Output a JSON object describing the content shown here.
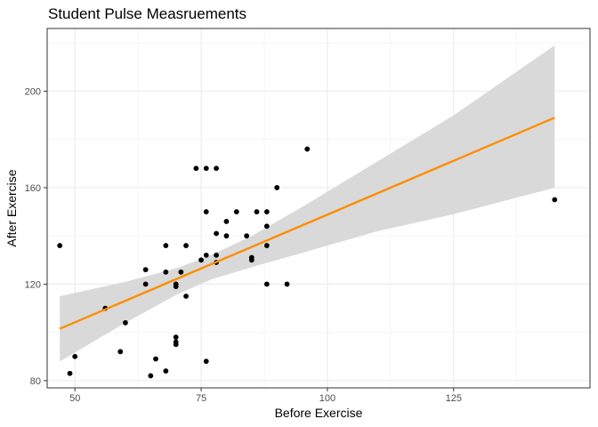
{
  "chart_data": {
    "type": "scatter",
    "title": "Student Pulse Measruements",
    "xlabel": "Before Exercise",
    "ylabel": "After Exercise",
    "xlim": [
      44.5,
      152
    ],
    "ylim": [
      77,
      226
    ],
    "x_ticks": [
      50,
      75,
      100,
      125
    ],
    "y_ticks": [
      80,
      120,
      160,
      200
    ],
    "x_minor": [
      62.5,
      87.5,
      112.5,
      137.5
    ],
    "y_minor": [
      100,
      140,
      180,
      220
    ],
    "grid": true,
    "theme": "bw",
    "point_color": "#000000",
    "points": [
      {
        "x": 47,
        "y": 136
      },
      {
        "x": 49,
        "y": 83
      },
      {
        "x": 50,
        "y": 90
      },
      {
        "x": 56,
        "y": 110
      },
      {
        "x": 59,
        "y": 92
      },
      {
        "x": 60,
        "y": 104
      },
      {
        "x": 64,
        "y": 126
      },
      {
        "x": 64,
        "y": 120
      },
      {
        "x": 65,
        "y": 82
      },
      {
        "x": 66,
        "y": 89
      },
      {
        "x": 68,
        "y": 136
      },
      {
        "x": 68,
        "y": 125
      },
      {
        "x": 68,
        "y": 84
      },
      {
        "x": 70,
        "y": 120
      },
      {
        "x": 70,
        "y": 119
      },
      {
        "x": 70,
        "y": 98
      },
      {
        "x": 70,
        "y": 96
      },
      {
        "x": 70,
        "y": 95
      },
      {
        "x": 71,
        "y": 125
      },
      {
        "x": 72,
        "y": 136
      },
      {
        "x": 72,
        "y": 115
      },
      {
        "x": 74,
        "y": 168
      },
      {
        "x": 75,
        "y": 130
      },
      {
        "x": 76,
        "y": 168
      },
      {
        "x": 76,
        "y": 150
      },
      {
        "x": 76,
        "y": 132
      },
      {
        "x": 76,
        "y": 88
      },
      {
        "x": 78,
        "y": 168
      },
      {
        "x": 78,
        "y": 141
      },
      {
        "x": 78,
        "y": 132
      },
      {
        "x": 78,
        "y": 129
      },
      {
        "x": 80,
        "y": 146
      },
      {
        "x": 80,
        "y": 140
      },
      {
        "x": 82,
        "y": 150
      },
      {
        "x": 84,
        "y": 140
      },
      {
        "x": 85,
        "y": 131
      },
      {
        "x": 85,
        "y": 130
      },
      {
        "x": 86,
        "y": 150
      },
      {
        "x": 88,
        "y": 150
      },
      {
        "x": 88,
        "y": 144
      },
      {
        "x": 88,
        "y": 136
      },
      {
        "x": 88,
        "y": 120
      },
      {
        "x": 90,
        "y": 160
      },
      {
        "x": 92,
        "y": 120
      },
      {
        "x": 96,
        "y": 176
      },
      {
        "x": 145,
        "y": 155
      }
    ],
    "fit": {
      "method": "lm",
      "color": "#FF8C00",
      "line": [
        {
          "x": 47,
          "y": 101.5
        },
        {
          "x": 145,
          "y": 189
        }
      ],
      "band_color": "#D9D9D9",
      "band": [
        {
          "x": 47,
          "lower": 88,
          "upper": 115
        },
        {
          "x": 60,
          "lower": 104,
          "upper": 121
        },
        {
          "x": 70,
          "lower": 115.5,
          "upper": 126.5
        },
        {
          "x": 77,
          "lower": 122,
          "upper": 132
        },
        {
          "x": 85,
          "lower": 127,
          "upper": 140
        },
        {
          "x": 95,
          "lower": 133,
          "upper": 152
        },
        {
          "x": 110,
          "lower": 142,
          "upper": 171
        },
        {
          "x": 125,
          "lower": 149,
          "upper": 190
        },
        {
          "x": 145,
          "lower": 160,
          "upper": 219
        }
      ]
    }
  }
}
